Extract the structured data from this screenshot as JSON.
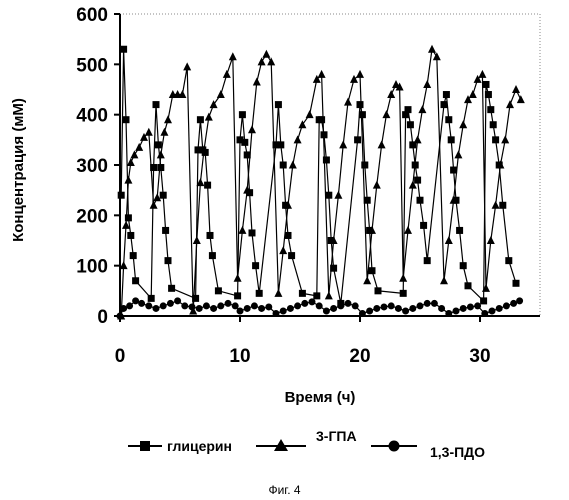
{
  "chart_data": {
    "type": "line",
    "xlabel": "Время (ч)",
    "ylabel": "Концентрация (мМ)",
    "xlim": [
      0,
      35
    ],
    "ylim": [
      0,
      600
    ],
    "xticks": [
      "0",
      "10",
      "20",
      "30"
    ],
    "yticks": [
      "0",
      "100",
      "200",
      "300",
      "400",
      "500",
      "600"
    ],
    "grid": false,
    "legend_position": "bottom",
    "series": [
      {
        "name": "глицерин",
        "marker": "square",
        "points": [
          [
            0.1,
            240
          ],
          [
            0.3,
            530
          ],
          [
            0.5,
            390
          ],
          [
            0.7,
            195
          ],
          [
            0.9,
            160
          ],
          [
            1.1,
            120
          ],
          [
            1.3,
            70
          ],
          [
            2.6,
            35
          ],
          [
            2.8,
            295
          ],
          [
            3.0,
            420
          ],
          [
            3.2,
            340
          ],
          [
            3.4,
            295
          ],
          [
            3.6,
            240
          ],
          [
            3.8,
            170
          ],
          [
            4.0,
            110
          ],
          [
            4.3,
            55
          ],
          [
            6.3,
            35
          ],
          [
            6.5,
            330
          ],
          [
            6.7,
            390
          ],
          [
            6.9,
            330
          ],
          [
            7.1,
            325
          ],
          [
            7.3,
            260
          ],
          [
            7.5,
            160
          ],
          [
            7.7,
            120
          ],
          [
            8.2,
            50
          ],
          [
            9.8,
            40
          ],
          [
            10.0,
            350
          ],
          [
            10.2,
            400
          ],
          [
            10.4,
            345
          ],
          [
            10.6,
            320
          ],
          [
            10.8,
            245
          ],
          [
            11.0,
            165
          ],
          [
            11.3,
            100
          ],
          [
            11.6,
            45
          ],
          [
            13.0,
            340
          ],
          [
            13.2,
            420
          ],
          [
            13.4,
            340
          ],
          [
            13.6,
            300
          ],
          [
            13.8,
            220
          ],
          [
            14.0,
            160
          ],
          [
            14.3,
            120
          ],
          [
            15.2,
            45
          ],
          [
            16.4,
            40
          ],
          [
            16.6,
            390
          ],
          [
            16.8,
            390
          ],
          [
            17.0,
            360
          ],
          [
            17.2,
            310
          ],
          [
            17.4,
            240
          ],
          [
            17.6,
            150
          ],
          [
            17.8,
            95
          ],
          [
            18.4,
            25
          ],
          [
            19.8,
            350
          ],
          [
            20.0,
            420
          ],
          [
            20.2,
            400
          ],
          [
            20.4,
            300
          ],
          [
            20.6,
            230
          ],
          [
            20.8,
            170
          ],
          [
            21.0,
            90
          ],
          [
            21.5,
            50
          ],
          [
            23.6,
            45
          ],
          [
            23.8,
            400
          ],
          [
            24.0,
            410
          ],
          [
            24.2,
            380
          ],
          [
            24.4,
            340
          ],
          [
            24.6,
            300
          ],
          [
            24.8,
            270
          ],
          [
            25.0,
            230
          ],
          [
            25.3,
            180
          ],
          [
            25.6,
            110
          ],
          [
            27.0,
            420
          ],
          [
            27.2,
            440
          ],
          [
            27.4,
            390
          ],
          [
            27.6,
            350
          ],
          [
            27.8,
            290
          ],
          [
            28.0,
            230
          ],
          [
            28.3,
            170
          ],
          [
            28.6,
            100
          ],
          [
            29.0,
            60
          ],
          [
            30.3,
            30
          ],
          [
            30.5,
            460
          ],
          [
            30.7,
            440
          ],
          [
            30.9,
            410
          ],
          [
            31.1,
            380
          ],
          [
            31.3,
            350
          ],
          [
            31.6,
            300
          ],
          [
            31.9,
            220
          ],
          [
            32.4,
            110
          ],
          [
            33.0,
            65
          ]
        ]
      },
      {
        "name": "3-ГПА",
        "marker": "triangle",
        "points": [
          [
            0.1,
            0
          ],
          [
            0.3,
            100
          ],
          [
            0.5,
            180
          ],
          [
            0.7,
            270
          ],
          [
            0.9,
            305
          ],
          [
            1.2,
            320
          ],
          [
            1.6,
            335
          ],
          [
            2.0,
            355
          ],
          [
            2.4,
            365
          ],
          [
            2.8,
            220
          ],
          [
            3.1,
            235
          ],
          [
            3.4,
            320
          ],
          [
            3.7,
            365
          ],
          [
            4.0,
            390
          ],
          [
            4.4,
            440
          ],
          [
            4.8,
            440
          ],
          [
            5.2,
            440
          ],
          [
            5.6,
            495
          ],
          [
            6.1,
            10
          ],
          [
            6.4,
            150
          ],
          [
            6.7,
            265
          ],
          [
            7.0,
            330
          ],
          [
            7.4,
            395
          ],
          [
            7.8,
            420
          ],
          [
            8.4,
            440
          ],
          [
            8.9,
            480
          ],
          [
            9.4,
            515
          ],
          [
            9.8,
            75
          ],
          [
            10.2,
            170
          ],
          [
            10.6,
            250
          ],
          [
            11.0,
            370
          ],
          [
            11.4,
            465
          ],
          [
            11.8,
            505
          ],
          [
            12.2,
            520
          ],
          [
            12.6,
            505
          ],
          [
            13.2,
            45
          ],
          [
            13.6,
            130
          ],
          [
            14.0,
            220
          ],
          [
            14.4,
            300
          ],
          [
            14.8,
            350
          ],
          [
            15.2,
            380
          ],
          [
            15.8,
            400
          ],
          [
            16.4,
            470
          ],
          [
            16.8,
            480
          ],
          [
            17.4,
            40
          ],
          [
            17.8,
            150
          ],
          [
            18.2,
            240
          ],
          [
            18.6,
            340
          ],
          [
            19.0,
            425
          ],
          [
            19.5,
            470
          ],
          [
            20.0,
            480
          ],
          [
            20.6,
            70
          ],
          [
            21.0,
            170
          ],
          [
            21.4,
            260
          ],
          [
            21.8,
            340
          ],
          [
            22.2,
            400
          ],
          [
            22.6,
            440
          ],
          [
            23.0,
            460
          ],
          [
            23.3,
            455
          ],
          [
            23.6,
            75
          ],
          [
            24.0,
            170
          ],
          [
            24.4,
            260
          ],
          [
            24.8,
            350
          ],
          [
            25.2,
            410
          ],
          [
            25.6,
            460
          ],
          [
            26.0,
            530
          ],
          [
            26.4,
            515
          ],
          [
            27.0,
            70
          ],
          [
            27.4,
            150
          ],
          [
            27.8,
            230
          ],
          [
            28.2,
            320
          ],
          [
            28.6,
            380
          ],
          [
            29.0,
            430
          ],
          [
            29.4,
            440
          ],
          [
            29.8,
            470
          ],
          [
            30.2,
            480
          ],
          [
            30.5,
            55
          ],
          [
            30.9,
            150
          ],
          [
            31.3,
            220
          ],
          [
            31.7,
            300
          ],
          [
            32.1,
            350
          ],
          [
            32.5,
            420
          ],
          [
            33.0,
            450
          ],
          [
            33.4,
            430
          ]
        ]
      },
      {
        "name": "1,3-ПДО",
        "marker": "circle",
        "points": [
          [
            0,
            0
          ],
          [
            0.3,
            15
          ],
          [
            0.8,
            20
          ],
          [
            1.3,
            30
          ],
          [
            1.8,
            25
          ],
          [
            2.4,
            20
          ],
          [
            3.0,
            15
          ],
          [
            3.6,
            20
          ],
          [
            4.2,
            25
          ],
          [
            4.8,
            30
          ],
          [
            5.4,
            20
          ],
          [
            6.0,
            18
          ],
          [
            6.6,
            15
          ],
          [
            7.2,
            20
          ],
          [
            7.8,
            15
          ],
          [
            8.4,
            20
          ],
          [
            9.0,
            25
          ],
          [
            9.6,
            20
          ],
          [
            10.0,
            10
          ],
          [
            10.6,
            15
          ],
          [
            11.2,
            20
          ],
          [
            11.8,
            15
          ],
          [
            12.4,
            18
          ],
          [
            13.0,
            5
          ],
          [
            13.6,
            10
          ],
          [
            14.2,
            15
          ],
          [
            14.8,
            20
          ],
          [
            15.4,
            25
          ],
          [
            16.0,
            28
          ],
          [
            16.6,
            20
          ],
          [
            17.2,
            10
          ],
          [
            17.8,
            15
          ],
          [
            18.4,
            20
          ],
          [
            19.0,
            25
          ],
          [
            19.6,
            20
          ],
          [
            20.2,
            5
          ],
          [
            20.8,
            10
          ],
          [
            21.4,
            15
          ],
          [
            22.0,
            18
          ],
          [
            22.6,
            20
          ],
          [
            23.2,
            15
          ],
          [
            23.8,
            10
          ],
          [
            24.4,
            15
          ],
          [
            25.0,
            20
          ],
          [
            25.6,
            25
          ],
          [
            26.2,
            25
          ],
          [
            26.8,
            15
          ],
          [
            27.4,
            5
          ],
          [
            28.0,
            10
          ],
          [
            28.6,
            15
          ],
          [
            29.2,
            18
          ],
          [
            29.8,
            20
          ],
          [
            30.4,
            5
          ],
          [
            31.0,
            10
          ],
          [
            31.6,
            15
          ],
          [
            32.2,
            20
          ],
          [
            32.8,
            25
          ],
          [
            33.3,
            30
          ]
        ]
      }
    ]
  },
  "legend": {
    "items": [
      {
        "label": "глицерин",
        "marker": "square"
      },
      {
        "label": "3-ГПА",
        "marker": "triangle"
      },
      {
        "label": "1,3-ПДО",
        "marker": "circle"
      }
    ]
  },
  "caption": "Фиг. 4"
}
